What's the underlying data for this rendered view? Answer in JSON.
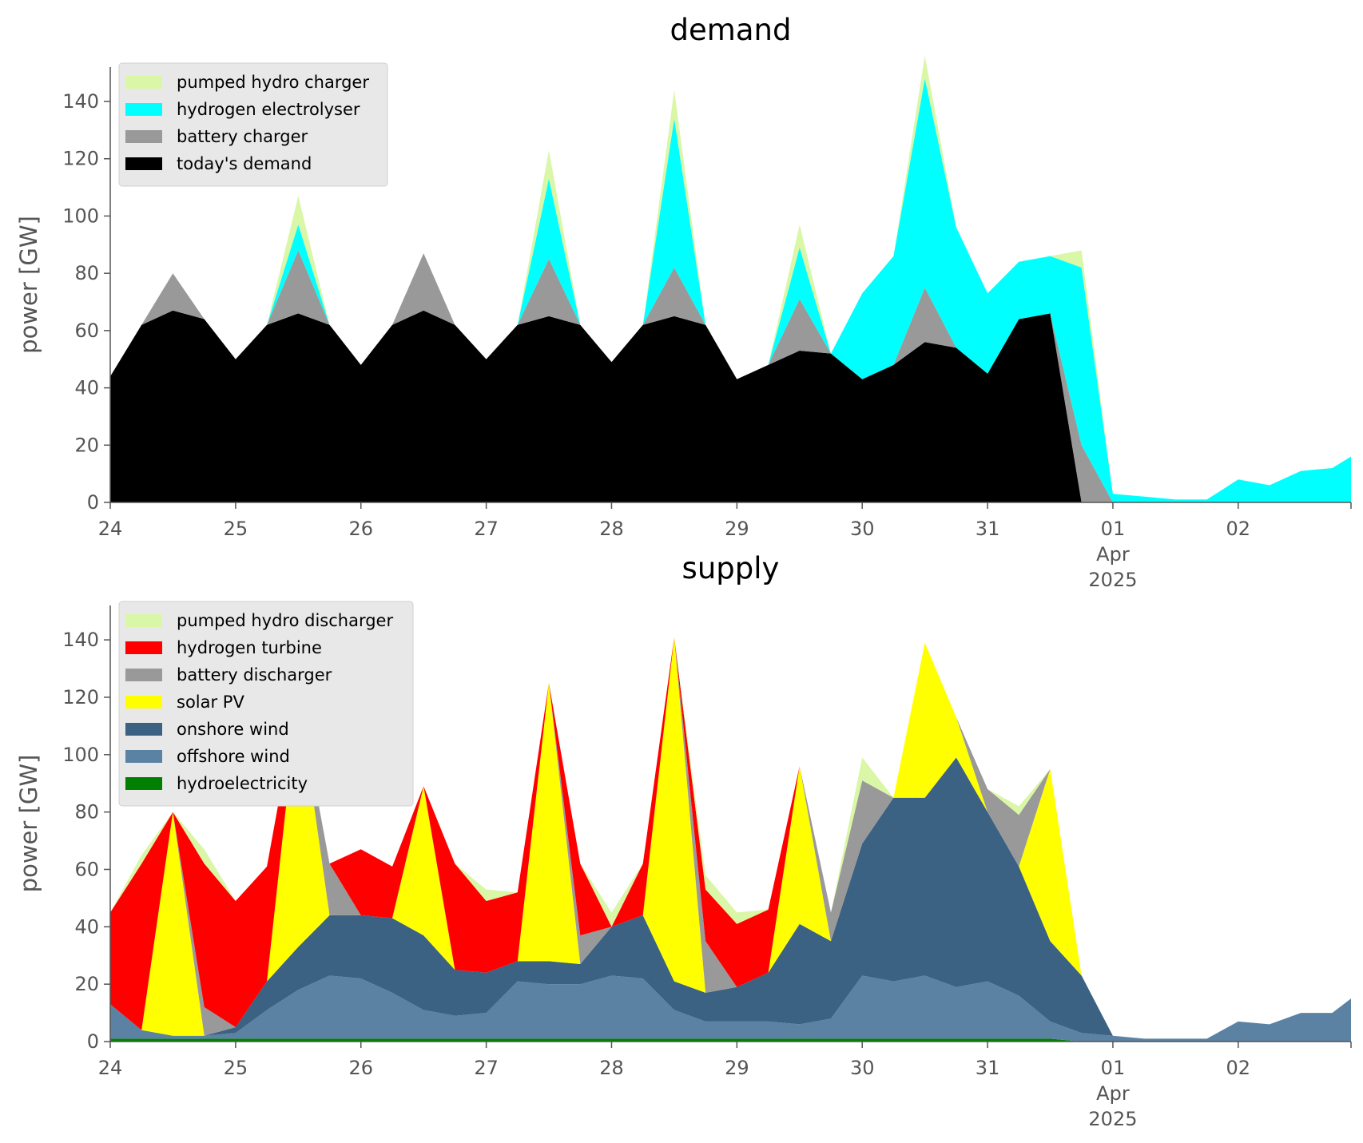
{
  "chart_data": [
    {
      "type": "area",
      "title": "demand",
      "ylabel": "power [GW]",
      "xlabel": "",
      "ylim": [
        0,
        152
      ],
      "xlim": [
        0,
        9.9
      ],
      "yticks": [
        0,
        20,
        40,
        60,
        80,
        100,
        120,
        140
      ],
      "xticks": [
        {
          "x": 0,
          "label": "24"
        },
        {
          "x": 1,
          "label": "25"
        },
        {
          "x": 2,
          "label": "26"
        },
        {
          "x": 3,
          "label": "27"
        },
        {
          "x": 4,
          "label": "28"
        },
        {
          "x": 5,
          "label": "29"
        },
        {
          "x": 6,
          "label": "30"
        },
        {
          "x": 7,
          "label": "31"
        },
        {
          "x": 8,
          "label": "01\nApr\n2025"
        },
        {
          "x": 9,
          "label": "02"
        }
      ],
      "x_unit": "days after 24 March 2025",
      "legend": "top-left",
      "grid": false,
      "x": [
        0,
        0.25,
        0.5,
        0.75,
        1,
        1.25,
        1.5,
        1.75,
        2,
        2.25,
        2.5,
        2.75,
        3,
        3.25,
        3.5,
        3.75,
        4,
        4.25,
        4.5,
        4.75,
        5,
        5.25,
        5.5,
        5.75,
        6,
        6.25,
        6.5,
        6.75,
        7,
        7.25,
        7.5,
        7.75,
        8,
        8.25,
        8.5,
        8.75,
        9,
        9.25,
        9.5,
        9.75,
        9.9
      ],
      "series": [
        {
          "name": "today's demand",
          "color": "#000000",
          "values": [
            44,
            62,
            67,
            64,
            50,
            62,
            66,
            62,
            48,
            62,
            67,
            62,
            50,
            62,
            65,
            62,
            49,
            62,
            65,
            62,
            43,
            48,
            53,
            52,
            43,
            48,
            56,
            54,
            45,
            64,
            66,
            0,
            0,
            0,
            0,
            0,
            0,
            0,
            0,
            0,
            0
          ]
        },
        {
          "name": "battery charger",
          "color": "#999999",
          "values": [
            0,
            0,
            13,
            0,
            0,
            0,
            22,
            0,
            0,
            0,
            20,
            0,
            0,
            0,
            20,
            0,
            0,
            0,
            17,
            0,
            0,
            0,
            18,
            0,
            0,
            0,
            19,
            0,
            0,
            0,
            0,
            20,
            0,
            0,
            0,
            0,
            0,
            0,
            0,
            0,
            0
          ]
        },
        {
          "name": "hydrogen electrolyser",
          "color": "#00ffff",
          "values": [
            0,
            0,
            0,
            0,
            0,
            0,
            9,
            0,
            0,
            0,
            0,
            0,
            0,
            0,
            28,
            0,
            0,
            0,
            52,
            0,
            0,
            0,
            18,
            0,
            30,
            38,
            73,
            42,
            28,
            20,
            20,
            62,
            3,
            2,
            1,
            1,
            8,
            6,
            11,
            12,
            16
          ]
        },
        {
          "name": "pumped hydro charger",
          "color": "#d9f7a6",
          "values": [
            0,
            0,
            0,
            0,
            0,
            0,
            10,
            0,
            0,
            0,
            0,
            0,
            0,
            0,
            10,
            0,
            0,
            0,
            10,
            0,
            0,
            0,
            8,
            0,
            0,
            0,
            8,
            0,
            0,
            0,
            0,
            6,
            0,
            0,
            0,
            0,
            0,
            0,
            0,
            0,
            0
          ]
        }
      ]
    },
    {
      "type": "area",
      "title": "supply",
      "ylabel": "power [GW]",
      "xlabel": "",
      "ylim": [
        0,
        152
      ],
      "xlim": [
        0,
        9.9
      ],
      "yticks": [
        0,
        20,
        40,
        60,
        80,
        100,
        120,
        140
      ],
      "xticks": [
        {
          "x": 0,
          "label": "24"
        },
        {
          "x": 1,
          "label": "25"
        },
        {
          "x": 2,
          "label": "26"
        },
        {
          "x": 3,
          "label": "27"
        },
        {
          "x": 4,
          "label": "28"
        },
        {
          "x": 5,
          "label": "29"
        },
        {
          "x": 6,
          "label": "30"
        },
        {
          "x": 7,
          "label": "31"
        },
        {
          "x": 8,
          "label": "01\nApr\n2025"
        },
        {
          "x": 9,
          "label": "02"
        }
      ],
      "x_unit": "days after 24 March 2025",
      "legend": "top-left",
      "grid": false,
      "x": [
        0,
        0.25,
        0.5,
        0.75,
        1,
        1.25,
        1.5,
        1.75,
        2,
        2.25,
        2.5,
        2.75,
        3,
        3.25,
        3.5,
        3.75,
        4,
        4.25,
        4.5,
        4.75,
        5,
        5.25,
        5.5,
        5.75,
        6,
        6.25,
        6.5,
        6.75,
        7,
        7.25,
        7.5,
        7.75,
        8,
        8.25,
        8.5,
        8.75,
        9,
        9.25,
        9.5,
        9.75,
        9.9
      ],
      "series": [
        {
          "name": "hydroelectricity",
          "color": "#008000",
          "values": [
            1,
            1,
            1,
            1,
            1,
            1,
            1,
            1,
            1,
            1,
            1,
            1,
            1,
            1,
            1,
            1,
            1,
            1,
            1,
            1,
            1,
            1,
            1,
            1,
            1,
            1,
            1,
            1,
            1,
            1,
            1,
            0,
            0,
            0,
            0,
            0,
            0,
            0,
            0,
            0,
            0
          ]
        },
        {
          "name": "offshore wind",
          "color": "#5b82a3",
          "values": [
            12,
            3,
            1,
            1,
            2,
            10,
            17,
            22,
            21,
            16,
            10,
            8,
            9,
            20,
            19,
            19,
            22,
            21,
            10,
            6,
            6,
            6,
            5,
            7,
            22,
            20,
            22,
            18,
            20,
            15,
            6,
            3,
            2,
            1,
            1,
            1,
            7,
            6,
            10,
            10,
            15
          ]
        },
        {
          "name": "onshore wind",
          "color": "#3b6183",
          "values": [
            0,
            0,
            0,
            0,
            2,
            10,
            15,
            21,
            22,
            26,
            26,
            16,
            14,
            7,
            8,
            7,
            17,
            22,
            10,
            10,
            12,
            17,
            35,
            27,
            46,
            64,
            62,
            80,
            59,
            45,
            28,
            20,
            0,
            0,
            0,
            0,
            0,
            0,
            0,
            0,
            0
          ]
        },
        {
          "name": "solar PV",
          "color": "#ffff00",
          "values": [
            0,
            0,
            78,
            0,
            0,
            0,
            88,
            0,
            0,
            0,
            52,
            0,
            0,
            0,
            97,
            0,
            0,
            0,
            120,
            0,
            0,
            0,
            55,
            0,
            0,
            0,
            54,
            14,
            0,
            0,
            60,
            0,
            0,
            0,
            0,
            0,
            0,
            0,
            0,
            0,
            0
          ]
        },
        {
          "name": "battery discharger",
          "color": "#999999",
          "values": [
            0,
            0,
            0,
            10,
            0,
            0,
            0,
            18,
            0,
            0,
            0,
            0,
            0,
            0,
            0,
            10,
            0,
            0,
            0,
            18,
            0,
            0,
            0,
            10,
            22,
            0,
            0,
            0,
            8,
            18,
            0,
            0,
            0,
            0,
            0,
            0,
            0,
            0,
            0,
            0,
            0
          ]
        },
        {
          "name": "hydrogen turbine",
          "color": "#ff0000",
          "values": [
            32,
            58,
            0,
            50,
            44,
            40,
            0,
            0,
            23,
            18,
            0,
            37,
            25,
            24,
            0,
            25,
            0,
            18,
            0,
            18,
            22,
            22,
            0,
            0,
            0,
            0,
            0,
            0,
            0,
            0,
            0,
            0,
            0,
            0,
            0,
            0,
            0,
            0,
            0,
            0,
            0
          ]
        },
        {
          "name": "pumped hydro discharger",
          "color": "#d9f7a6",
          "values": [
            0,
            3,
            0,
            5,
            0,
            0,
            0,
            0,
            0,
            0,
            0,
            0,
            4,
            0,
            0,
            0,
            5,
            0,
            0,
            5,
            4,
            0,
            0,
            0,
            8,
            0,
            0,
            0,
            0,
            3,
            0,
            0,
            0,
            0,
            0,
            0,
            0,
            0,
            0,
            0,
            0
          ]
        }
      ]
    }
  ]
}
